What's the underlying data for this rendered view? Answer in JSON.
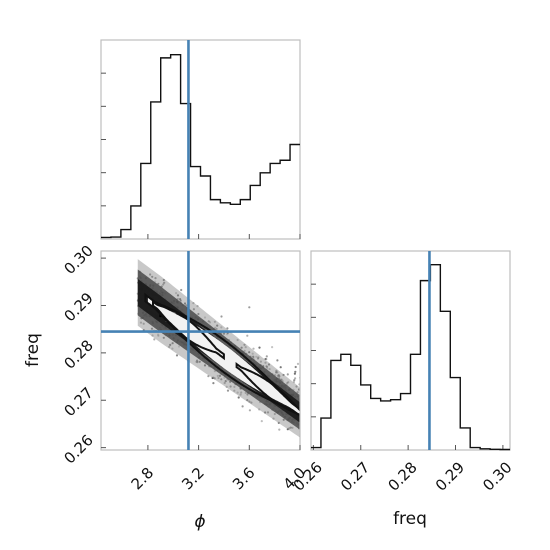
{
  "chart_data": {
    "type": "corner",
    "parameters": [
      "ϕ",
      "freq"
    ],
    "truths": {
      "phi": 3.12,
      "freq": 0.2845
    },
    "phi_hist": {
      "range": [
        2.43,
        4.0
      ],
      "counts": [
        0.5,
        0.6,
        3.0,
        10.5,
        24.0,
        43.5,
        57.5,
        58.5,
        43.0,
        23.0,
        20.0,
        12.5,
        11.5,
        11.0,
        12.5,
        17.0,
        21.0,
        24.0,
        25.0,
        30.0
      ]
    },
    "freq_hist": {
      "range": [
        0.2595,
        0.3015
      ],
      "counts": [
        1.0,
        13.0,
        36.5,
        39.0,
        34.5,
        26.5,
        21.0,
        20.0,
        20.5,
        23.0,
        39.0,
        69.0,
        75.5,
        56.5,
        29.5,
        9.0,
        1.0,
        0.5,
        0.3,
        0.2
      ]
    },
    "axes": {
      "phi": {
        "ticks": [
          2.8,
          3.2,
          3.6,
          4.0
        ],
        "tick_labels": [
          "2.8",
          "3.2",
          "3.6",
          "4.0"
        ]
      },
      "freq": {
        "ticks": [
          0.26,
          0.27,
          0.28,
          0.29,
          0.3
        ],
        "tick_labels": [
          "0.26",
          "0.27",
          "0.28",
          "0.29",
          "0.30"
        ]
      }
    },
    "labels": {
      "phi": "ϕ",
      "freq": "freq"
    },
    "joint": {
      "relation": "freq = 0.2886 - 0.0198 * (phi - 2.93)",
      "spread_freq": 0.0022,
      "phi_range": [
        2.72,
        4.0
      ],
      "mode_cells": [
        {
          "phi": 2.93,
          "freq": 0.2886,
          "level": 1.0
        },
        {
          "phi": 3.02,
          "freq": 0.2868,
          "level": 0.95
        },
        {
          "phi": 2.98,
          "freq": 0.2876,
          "level": 0.55
        }
      ]
    },
    "colors": {
      "truth": "#4682b4",
      "hist": "#111111",
      "points": "#222222",
      "frame": "#bdbdbd"
    },
    "grid": false
  }
}
